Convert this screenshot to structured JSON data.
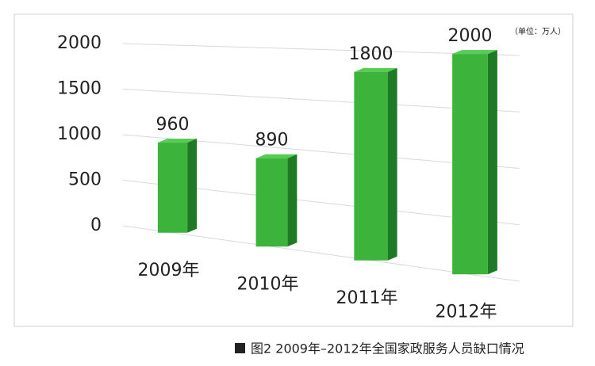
{
  "chart_data": {
    "type": "bar",
    "unit": "（单位：万人）",
    "caption": "图2  2009年–2012年全国家政服务人员缺口情况",
    "categories": [
      "2009年",
      "2010年",
      "2011年",
      "2012年"
    ],
    "values": [
      960,
      890,
      1800,
      2000
    ],
    "color": "#3cb43c",
    "ylim": [
      0,
      2000
    ],
    "yticks": [
      0,
      500,
      1000,
      1500,
      2000
    ],
    "grid": true
  }
}
